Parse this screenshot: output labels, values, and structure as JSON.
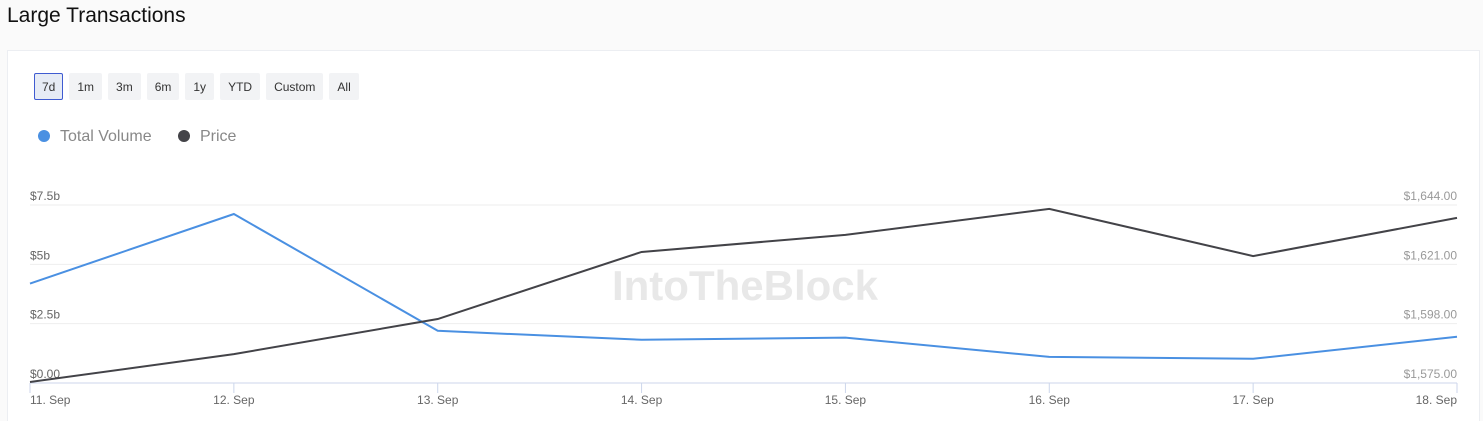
{
  "header": {
    "title": "Large Transactions"
  },
  "range_buttons": {
    "labels": [
      "7d",
      "1m",
      "3m",
      "6m",
      "1y",
      "YTD",
      "Custom",
      "All"
    ],
    "active": "7d"
  },
  "chart_data": {
    "type": "line",
    "watermark": "IntoTheBlock",
    "categories": [
      "11. Sep",
      "12. Sep",
      "13. Sep",
      "14. Sep",
      "15. Sep",
      "16. Sep",
      "17. Sep",
      "18. Sep"
    ],
    "series": [
      {
        "name": "Total Volume",
        "color": "#4a90e2",
        "values": [
          4.19,
          7.12,
          2.2,
          1.82,
          1.91,
          1.1,
          1.02,
          1.95
        ]
      },
      {
        "name": "Price",
        "color": "#434348",
        "axis": "y2",
        "values": [
          1575.4,
          1586.2,
          1599.8,
          1625.8,
          1632.4,
          1642.5,
          1624.2,
          1639.0
        ]
      }
    ],
    "ylim": [
      0,
      7.5
    ],
    "yticks": [
      {
        "value": 0,
        "label": "$0.00"
      },
      {
        "value": 2.5,
        "label": "$2.5b"
      },
      {
        "value": 5,
        "label": "$5b"
      },
      {
        "value": 7.5,
        "label": "$7.5b"
      }
    ],
    "y2lim": [
      1575,
      1644
    ],
    "y2ticks": [
      {
        "value": 1575,
        "label": "$1,575.00"
      },
      {
        "value": 1598,
        "label": "$1,598.00"
      },
      {
        "value": 1621,
        "label": "$1,621.00"
      },
      {
        "value": 1644,
        "label": "$1,644.00"
      }
    ],
    "grid": true
  }
}
